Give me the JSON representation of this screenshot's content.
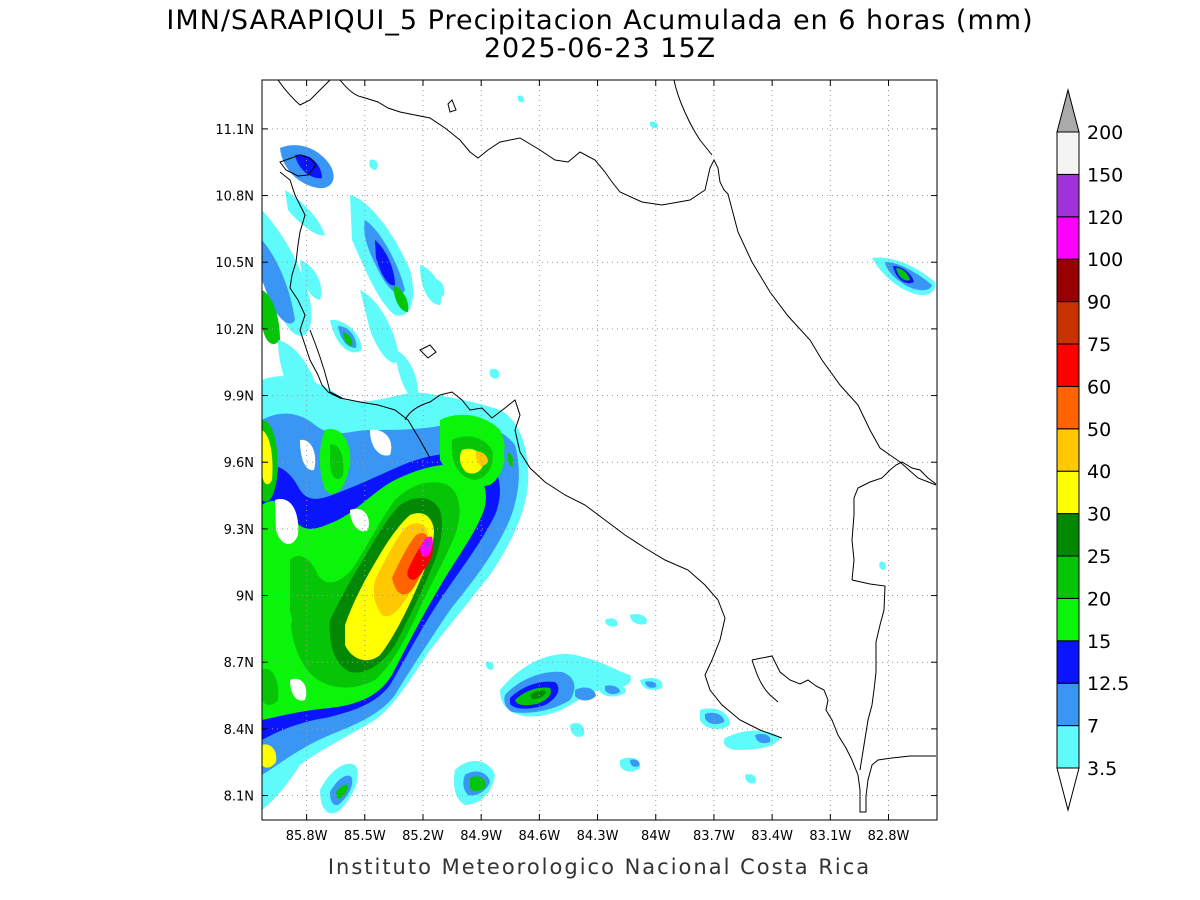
{
  "title": {
    "line1": "IMN/SARAPIQUI_5 Precipitacion Acumulada en 6 horas (mm)",
    "line2": "2025-06-23 15Z"
  },
  "footer": "Instituto Meteorologico Nacional Costa Rica",
  "map": {
    "lon_range": [
      -86.03,
      -82.55
    ],
    "lat_range": [
      7.99,
      11.32
    ],
    "lon_ticks": [
      {
        "value": -85.8,
        "label": "85.8W"
      },
      {
        "value": -85.5,
        "label": "85.5W"
      },
      {
        "value": -85.2,
        "label": "85.2W"
      },
      {
        "value": -84.9,
        "label": "84.9W"
      },
      {
        "value": -84.6,
        "label": "84.6W"
      },
      {
        "value": -84.3,
        "label": "84.3W"
      },
      {
        "value": -84.0,
        "label": "84W"
      },
      {
        "value": -83.7,
        "label": "83.7W"
      },
      {
        "value": -83.4,
        "label": "83.4W"
      },
      {
        "value": -83.1,
        "label": "83.1W"
      },
      {
        "value": -82.8,
        "label": "82.8W"
      }
    ],
    "lat_ticks": [
      {
        "value": 8.1,
        "label": "8.1N"
      },
      {
        "value": 8.4,
        "label": "8.4N"
      },
      {
        "value": 8.7,
        "label": "8.7N"
      },
      {
        "value": 9.0,
        "label": "9N"
      },
      {
        "value": 9.3,
        "label": "9.3N"
      },
      {
        "value": 9.6,
        "label": "9.6N"
      },
      {
        "value": 9.9,
        "label": "9.9N"
      },
      {
        "value": 10.2,
        "label": "10.2N"
      },
      {
        "value": 10.5,
        "label": "10.5N"
      },
      {
        "value": 10.8,
        "label": "10.8N"
      },
      {
        "value": 11.1,
        "label": "11.1N"
      }
    ],
    "grid": true
  },
  "colorbar": {
    "unit": "mm",
    "levels": [
      {
        "value": "3.5",
        "color": "#5ffbfb"
      },
      {
        "value": "7",
        "color": "#3a96f5"
      },
      {
        "value": "12.5",
        "color": "#0a14ff"
      },
      {
        "value": "15",
        "color": "#0af50a"
      },
      {
        "value": "20",
        "color": "#06c406"
      },
      {
        "value": "25",
        "color": "#038803"
      },
      {
        "value": "30",
        "color": "#ffff00"
      },
      {
        "value": "40",
        "color": "#ffc800"
      },
      {
        "value": "50",
        "color": "#ff6400"
      },
      {
        "value": "60",
        "color": "#ff0000"
      },
      {
        "value": "75",
        "color": "#c83200"
      },
      {
        "value": "90",
        "color": "#960000"
      },
      {
        "value": "100",
        "color": "#ff00ff"
      },
      {
        "value": "120",
        "color": "#a032dc"
      },
      {
        "value": "150",
        "color": "#f4f4f4"
      },
      {
        "value": "200",
        "color": "#aaaaaa"
      }
    ],
    "under_color": "#ffffff",
    "over_color": "#aaaaaa"
  }
}
